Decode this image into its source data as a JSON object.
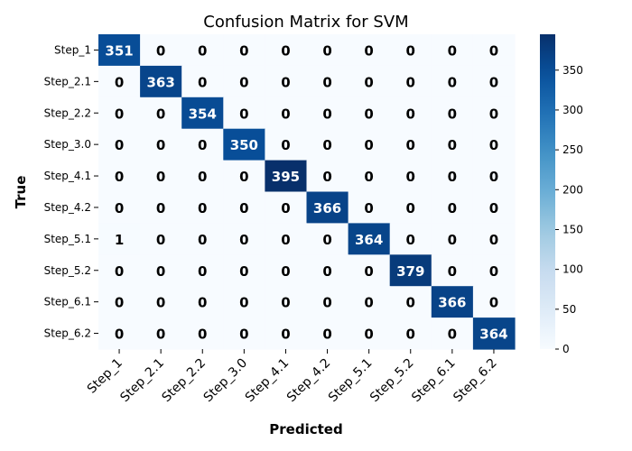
{
  "chart_data": {
    "type": "heatmap",
    "title": "Confusion Matrix for SVM",
    "xlabel": "Predicted",
    "ylabel": "True",
    "x_categories": [
      "Step_1",
      "Step_2.1",
      "Step_2.2",
      "Step_3.0",
      "Step_4.1",
      "Step_4.2",
      "Step_5.1",
      "Step_5.2",
      "Step_6.1",
      "Step_6.2"
    ],
    "y_categories": [
      "Step_1",
      "Step_2.1",
      "Step_2.2",
      "Step_3.0",
      "Step_4.1",
      "Step_4.2",
      "Step_5.1",
      "Step_5.2",
      "Step_6.1",
      "Step_6.2"
    ],
    "values": [
      [
        351,
        0,
        0,
        0,
        0,
        0,
        0,
        0,
        0,
        0
      ],
      [
        0,
        363,
        0,
        0,
        0,
        0,
        0,
        0,
        0,
        0
      ],
      [
        0,
        0,
        354,
        0,
        0,
        0,
        0,
        0,
        0,
        0
      ],
      [
        0,
        0,
        0,
        350,
        0,
        0,
        0,
        0,
        0,
        0
      ],
      [
        0,
        0,
        0,
        0,
        395,
        0,
        0,
        0,
        0,
        0
      ],
      [
        0,
        0,
        0,
        0,
        0,
        366,
        0,
        0,
        0,
        0
      ],
      [
        1,
        0,
        0,
        0,
        0,
        0,
        364,
        0,
        0,
        0
      ],
      [
        0,
        0,
        0,
        0,
        0,
        0,
        0,
        379,
        0,
        0
      ],
      [
        0,
        0,
        0,
        0,
        0,
        0,
        0,
        0,
        366,
        0
      ],
      [
        0,
        0,
        0,
        0,
        0,
        0,
        0,
        0,
        0,
        364
      ]
    ],
    "colorbar": {
      "min": 0,
      "max": 395,
      "ticks": [
        0,
        50,
        100,
        150,
        200,
        250,
        300,
        350
      ],
      "colormap": "Blues"
    }
  }
}
